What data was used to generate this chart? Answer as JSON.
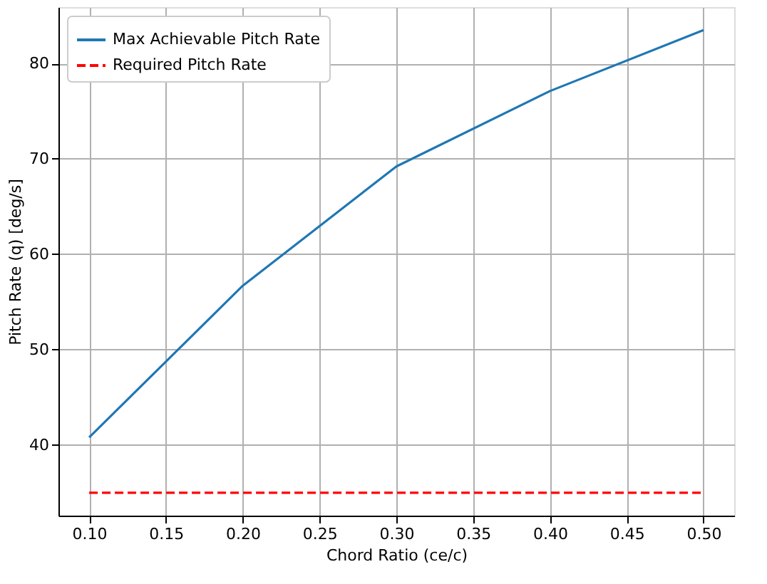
{
  "chart_data": {
    "type": "line",
    "xlabel": "Chord Ratio (ce/c)",
    "ylabel": "Pitch Rate (q) [deg/s]",
    "x": [
      0.1,
      0.2,
      0.3,
      0.4,
      0.5
    ],
    "series": [
      {
        "name": "Max Achievable Pitch Rate",
        "color": "#1f77b4",
        "values": [
          40.8,
          56.7,
          69.2,
          77.1,
          83.5
        ],
        "line_style": "solid"
      },
      {
        "name": "Required Pitch Rate",
        "color": "#ff0000",
        "values": [
          35,
          35,
          35,
          35,
          35
        ],
        "line_style": "dashed"
      }
    ],
    "xlim": [
      0.08,
      0.52
    ],
    "xticks": [
      {
        "value": 0.1,
        "label": "0.10"
      },
      0.15,
      {
        "value": 0.2,
        "label": "0.20"
      },
      0.25,
      {
        "value": 0.3,
        "label": "0.30"
      },
      0.35,
      {
        "value": 0.4,
        "label": "0.40"
      },
      0.45,
      {
        "value": 0.5,
        "label": "0.50"
      }
    ],
    "ylim": [
      32.6,
      85.9
    ],
    "yticks": [
      40,
      50,
      60,
      70,
      80
    ],
    "grid": true,
    "legend": "top left",
    "marker": "none"
  }
}
